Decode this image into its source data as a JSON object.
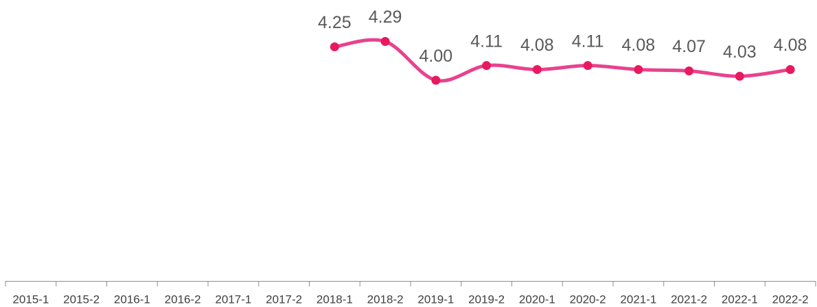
{
  "chart_data": {
    "type": "line",
    "categories": [
      "2015-1",
      "2015-2",
      "2016-1",
      "2016-2",
      "2017-1",
      "2017-2",
      "2018-1",
      "2018-2",
      "2019-1",
      "2019-2",
      "2020-1",
      "2020-2",
      "2021-1",
      "2021-2",
      "2022-1",
      "2022-2"
    ],
    "series": [
      {
        "name": null,
        "color": "#e8428f",
        "marker_color": "#e8195e",
        "values": [
          null,
          null,
          null,
          null,
          null,
          null,
          4.25,
          4.29,
          4.0,
          4.11,
          4.08,
          4.11,
          4.08,
          4.07,
          4.03,
          4.08
        ],
        "value_labels": [
          null,
          null,
          null,
          null,
          null,
          null,
          "4.25",
          "4.29",
          "4.00",
          "4.11",
          "4.08",
          "4.11",
          "4.08",
          "4.07",
          "4.03",
          "4.08"
        ]
      }
    ],
    "ylim": [
      2.5,
      4.6
    ],
    "grid": false
  }
}
